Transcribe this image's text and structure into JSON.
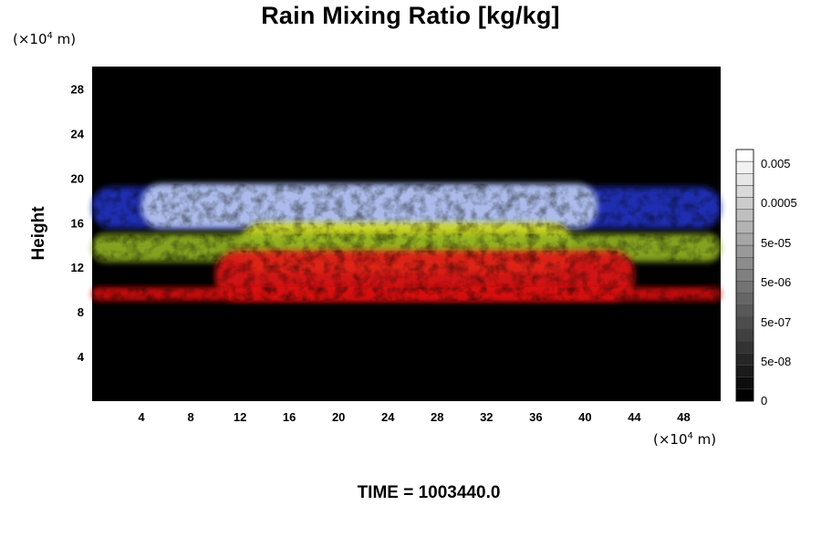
{
  "chart_data": {
    "type": "heatmap",
    "title": "Rain Mixing Ratio [kg/kg]",
    "ylabel": "Height",
    "x_unit": "(×10⁴ m)",
    "y_unit": "(×10⁴ m)",
    "xlim": [
      0,
      51
    ],
    "ylim": [
      0,
      30
    ],
    "x_ticks": [
      4,
      8,
      12,
      16,
      20,
      24,
      28,
      32,
      36,
      40,
      44,
      48
    ],
    "y_ticks": [
      4,
      8,
      12,
      16,
      20,
      24,
      28
    ],
    "colorbar": {
      "labels": [
        "0.005",
        "0.0005",
        "5e-05",
        "5e-06",
        "5e-07",
        "5e-08",
        "0"
      ],
      "levels": 21
    },
    "colors": {
      "background": "#000000",
      "upper_layer": "#b8c8f0",
      "upper_edge": "#2030c0",
      "middle_layer": "#d8e020",
      "side_layer": "#90b020",
      "lower_layer": "#e01818",
      "lower_thin": "#d81010"
    },
    "layers": [
      {
        "color_key": "upper_edge",
        "x": [
          0,
          51
        ],
        "y": [
          15.5,
          19.2
        ]
      },
      {
        "color_key": "upper_layer",
        "x": [
          4,
          41
        ],
        "y": [
          15.5,
          19.5
        ]
      },
      {
        "color_key": "middle_layer",
        "x": [
          12,
          39
        ],
        "y": [
          11.5,
          16.0
        ]
      },
      {
        "color_key": "side_layer",
        "x": [
          0,
          51
        ],
        "y": [
          12.5,
          15.0
        ]
      },
      {
        "color_key": "lower_layer",
        "x": [
          10,
          44
        ],
        "y": [
          9.0,
          13.5
        ]
      },
      {
        "color_key": "lower_thin",
        "x": [
          0,
          51
        ],
        "y": [
          9.0,
          10.2
        ]
      }
    ]
  },
  "footer": {
    "time_label": "TIME = 1003440.0"
  }
}
